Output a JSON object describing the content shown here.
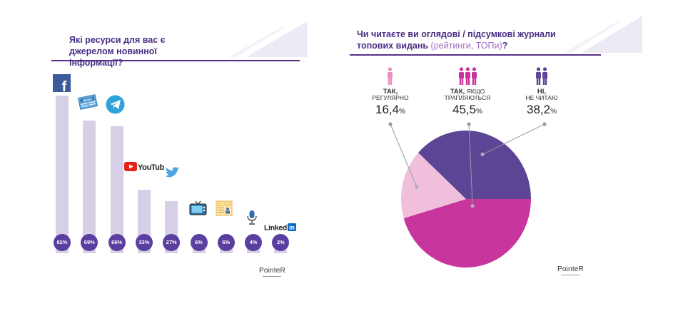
{
  "chart_data": [
    {
      "type": "bar",
      "title": "Які ресурси для вас є джерелом новинної інформації?",
      "categories": [
        "facebook-icon",
        "news-icon",
        "telegram-icon",
        "youtube-icon",
        "twitter-icon",
        "tv-icon",
        "press-icon",
        "microphone-icon",
        "linkedin-icon"
      ],
      "values": [
        82,
        69,
        66,
        33,
        27,
        6,
        6,
        4,
        2
      ],
      "value_labels": [
        "82%",
        "69%",
        "66%",
        "33%",
        "27%",
        "6%",
        "6%",
        "4%",
        "2%"
      ],
      "icon_text": {
        "news": "NEWS",
        "youtube": "YouTube",
        "press": "PRESS",
        "linkedin_a": "Linked",
        "linkedin_b": "in"
      },
      "ylim": [
        0,
        100
      ],
      "bar_color": "#d6cfe6",
      "badge_color": "#5a3fa0"
    },
    {
      "type": "pie",
      "title_main": "Чи читаєте ви оглядові / підсумкові журнали топових видань",
      "title_note": "(рейтинги, ТОПи)",
      "title_end": "?",
      "slices": [
        {
          "label_bold": "ТАК,",
          "label_rest": "РЕГУЛЯРНО",
          "value": 16.4,
          "value_text": "16,4",
          "color": "#f0bfdc",
          "icon": "single-person-icon",
          "icon_color": "#ea8ec3"
        },
        {
          "label_bold": "ТАК,",
          "label_rest": "ЯКЩО ТРАПЛЯЮТЬСЯ",
          "value": 45.5,
          "value_text": "45,5",
          "color": "#c8359d",
          "icon": "three-people-icon",
          "icon_color": "#c8359d"
        },
        {
          "label_bold": "НІ,",
          "label_rest": "НЕ ЧИТАЮ",
          "value": 38.2,
          "value_text": "38,2",
          "color": "#5d4596",
          "icon": "two-people-icon",
          "icon_color": "#5d4596"
        }
      ],
      "unit": "%"
    }
  ],
  "brand": "PointeR"
}
